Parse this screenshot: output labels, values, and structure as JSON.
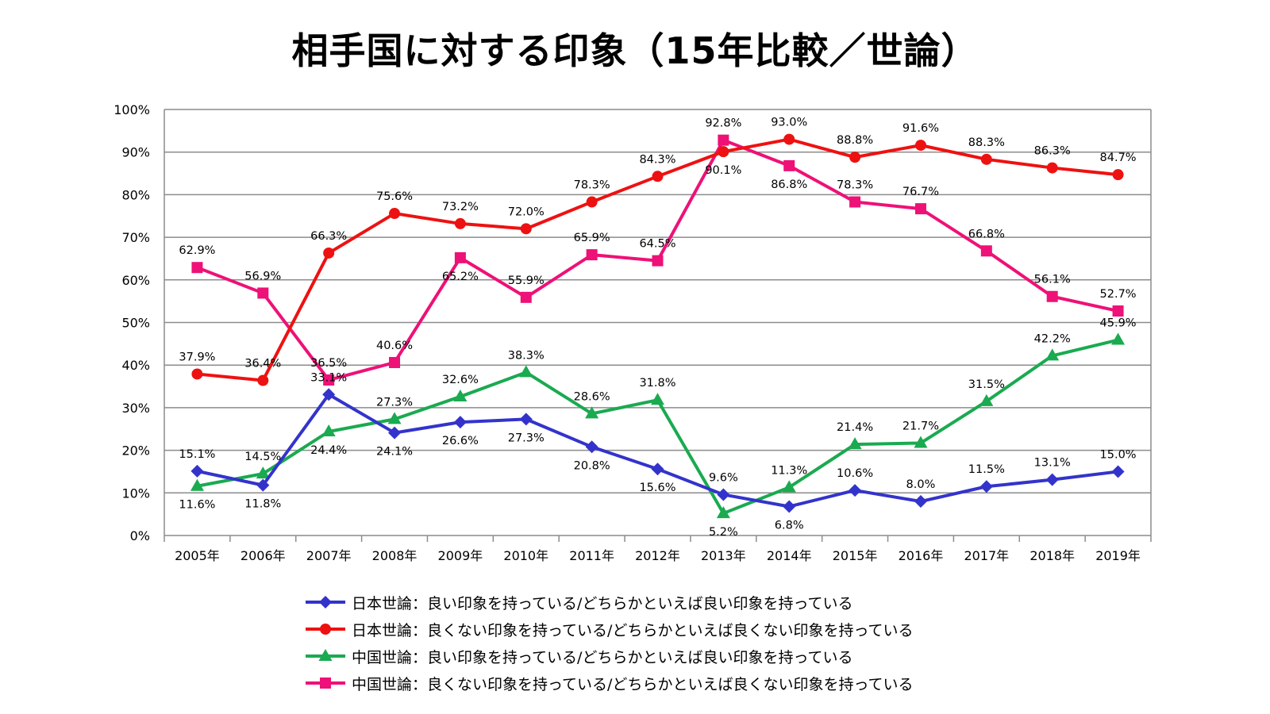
{
  "chart_data": {
    "type": "line",
    "title": "相手国に対する印象（15年比較／世論）",
    "categories": [
      "2005年",
      "2006年",
      "2007年",
      "2008年",
      "2009年",
      "2010年",
      "2011年",
      "2012年",
      "2013年",
      "2014年",
      "2015年",
      "2016年",
      "2017年",
      "2018年",
      "2019年"
    ],
    "ylim": [
      0,
      100
    ],
    "yticks": [
      "0%",
      "10%",
      "20%",
      "30%",
      "40%",
      "50%",
      "60%",
      "70%",
      "80%",
      "90%",
      "100%"
    ],
    "grid": true,
    "legend_position": "bottom",
    "series": [
      {
        "name": "日本世論：良い印象を持っている/どちらかといえば良い印象を持っている",
        "color": "#3333cc",
        "marker": "diamond",
        "values": [
          15.1,
          11.8,
          33.1,
          24.1,
          26.6,
          27.3,
          20.8,
          15.6,
          9.6,
          6.8,
          10.6,
          8.0,
          11.5,
          13.1,
          15.0
        ],
        "labels": [
          "15.1%",
          "11.8%",
          "33.1%",
          "24.1%",
          "26.6%",
          "27.3%",
          "20.8%",
          "15.6%",
          "9.6%",
          "6.8%",
          "10.6%",
          "8.0%",
          "11.5%",
          "13.1%",
          "15.0%"
        ]
      },
      {
        "name": "日本世論：良くない印象を持っている/どちらかといえば良くない印象を持っている",
        "color": "#ee1111",
        "marker": "circle",
        "values": [
          37.9,
          36.4,
          66.3,
          75.6,
          73.2,
          72.0,
          78.3,
          84.3,
          90.1,
          93.0,
          88.8,
          91.6,
          88.3,
          86.3,
          84.7
        ],
        "labels": [
          "37.9%",
          "36.4%",
          "66.3%",
          "75.6%",
          "73.2%",
          "72.0%",
          "78.3%",
          "84.3%",
          "90.1%",
          "93.0%",
          "88.8%",
          "91.6%",
          "88.3%",
          "86.3%",
          "84.7%"
        ]
      },
      {
        "name": "中国世論：良い印象を持っている/どちらかといえば良い印象を持っている",
        "color": "#1aaa50",
        "marker": "triangle",
        "values": [
          11.6,
          14.5,
          24.4,
          27.3,
          32.6,
          38.3,
          28.6,
          31.8,
          5.2,
          11.3,
          21.4,
          21.7,
          31.5,
          42.2,
          45.9
        ],
        "labels": [
          "11.6%",
          "14.5%",
          "24.4%",
          "27.3%",
          "32.6%",
          "38.3%",
          "28.6%",
          "31.8%",
          "5.2%",
          "11.3%",
          "21.4%",
          "21.7%",
          "31.5%",
          "42.2%",
          "45.9%"
        ]
      },
      {
        "name": "中国世論：良くない印象を持っている/どちらかといえば良くない印象を持っている",
        "color": "#ee1177",
        "marker": "square",
        "values": [
          62.9,
          56.9,
          36.5,
          40.6,
          65.2,
          55.9,
          65.9,
          64.5,
          92.8,
          86.8,
          78.3,
          76.7,
          66.8,
          56.1,
          52.7
        ],
        "labels": [
          "62.9%",
          "56.9%",
          "36.5%",
          "40.6%",
          "65.2%",
          "55.9%",
          "65.9%",
          "64.5%",
          "92.8%",
          "86.8%",
          "78.3%",
          "76.7%",
          "66.8%",
          "56.1%",
          "52.7%"
        ]
      }
    ]
  }
}
